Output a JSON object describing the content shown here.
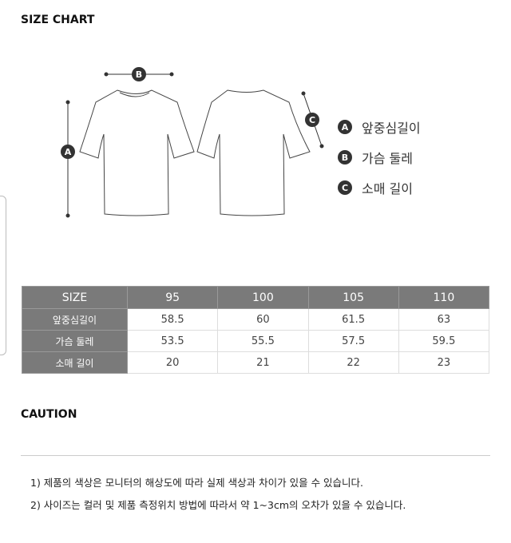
{
  "title": "SIZE CHART",
  "legend": [
    {
      "badge": "A",
      "label": "앞중심길이"
    },
    {
      "badge": "B",
      "label": "가슴 둘레"
    },
    {
      "badge": "C",
      "label": "소매 길이"
    }
  ],
  "table": {
    "headers": [
      "SIZE",
      "95",
      "100",
      "105",
      "110"
    ],
    "rows": [
      {
        "label": "앞중심길이",
        "values": [
          "58.5",
          "60",
          "61.5",
          "63"
        ]
      },
      {
        "label": "가슴 둘레",
        "values": [
          "53.5",
          "55.5",
          "57.5",
          "59.5"
        ]
      },
      {
        "label": "소매 길이",
        "values": [
          "20",
          "21",
          "22",
          "23"
        ]
      }
    ]
  },
  "caution": {
    "title": "CAUTION",
    "notes": [
      "1) 제품의 색상은 모니터의 해상도에 따라 실제 색상과 차이가 있을 수 있습니다.",
      "2) 사이즈는 컬러 및 제품 측정위치 방법에 따라서 약 1~3cm의 오차가 있을 수 있습니다."
    ]
  }
}
